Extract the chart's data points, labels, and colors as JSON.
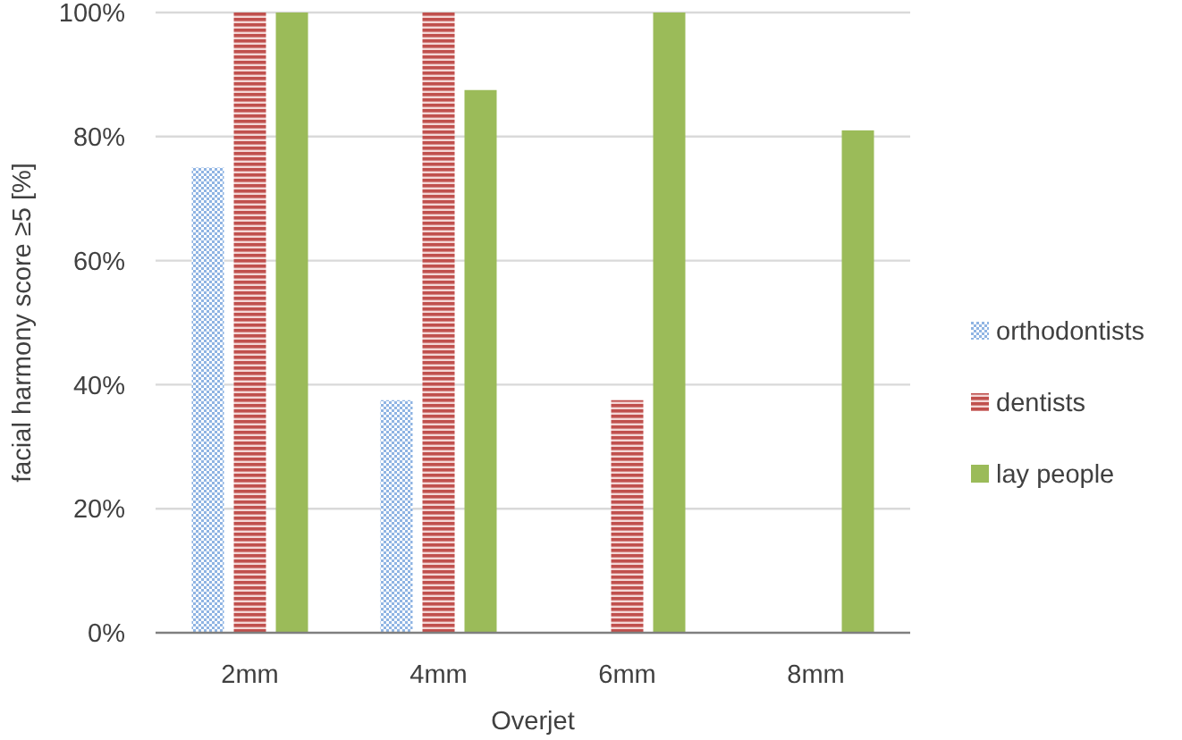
{
  "chart_data": {
    "type": "bar",
    "xlabel": "Overjet",
    "ylabel": "facial harmony score ≥5 [%]",
    "categories": [
      "2mm",
      "4mm",
      "6mm",
      "8mm"
    ],
    "series": [
      {
        "name": "orthodontists",
        "color": "#8fb4e3",
        "values": [
          75,
          37.5,
          0,
          0
        ]
      },
      {
        "name": "dentists",
        "color": "#c0504d",
        "values": [
          100,
          100,
          37.5,
          0
        ]
      },
      {
        "name": "lay people",
        "color": "#9bbb59",
        "values": [
          100,
          87.5,
          100,
          81
        ]
      }
    ],
    "ylim": [
      0,
      100
    ],
    "yticks": [
      {
        "value": 0,
        "label": "0%"
      },
      {
        "value": 20,
        "label": "20%"
      },
      {
        "value": 40,
        "label": "40%"
      },
      {
        "value": 60,
        "label": "60%"
      },
      {
        "value": 80,
        "label": "80%"
      },
      {
        "value": 100,
        "label": "100%"
      }
    ],
    "grid": "y",
    "legend": "right"
  }
}
